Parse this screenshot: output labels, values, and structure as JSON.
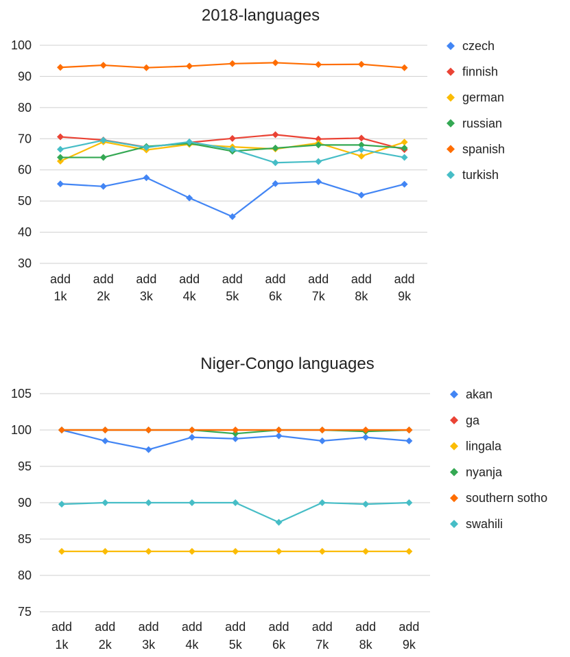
{
  "chart_data": [
    {
      "type": "line",
      "title": "2018-languages",
      "categories": [
        "add 1k",
        "add 2k",
        "add 3k",
        "add 4k",
        "add 5k",
        "add 6k",
        "add 7k",
        "add 8k",
        "add 9k"
      ],
      "ylim": [
        30,
        100
      ],
      "yticks": [
        30,
        40,
        50,
        60,
        70,
        80,
        90,
        100
      ],
      "grid": true,
      "legend": "right",
      "series": [
        {
          "name": "czech",
          "color": "#4285f4",
          "values": [
            55.5,
            54.7,
            57.5,
            51.0,
            45.0,
            55.6,
            56.2,
            51.9,
            55.4
          ]
        },
        {
          "name": "finnish",
          "color": "#ea4335",
          "values": [
            70.6,
            69.6,
            67.3,
            68.8,
            70.1,
            71.3,
            69.9,
            70.2,
            66.5
          ]
        },
        {
          "name": "german",
          "color": "#fbbc04",
          "values": [
            62.8,
            69.0,
            66.4,
            68.2,
            67.4,
            66.7,
            68.6,
            64.4,
            68.9
          ]
        },
        {
          "name": "russian",
          "color": "#34a853",
          "values": [
            64.0,
            64.0,
            67.5,
            68.5,
            66.0,
            67.0,
            68.0,
            68.0,
            67.0
          ]
        },
        {
          "name": "spanish",
          "color": "#ff6d01",
          "values": [
            92.9,
            93.6,
            92.8,
            93.3,
            94.1,
            94.4,
            93.8,
            93.9,
            92.8
          ]
        },
        {
          "name": "turkish",
          "color": "#46bdc6",
          "values": [
            66.6,
            69.5,
            67.2,
            69.0,
            66.6,
            62.3,
            62.7,
            66.5,
            64.0
          ]
        }
      ]
    },
    {
      "type": "line",
      "title": "Niger-Congo languages",
      "categories": [
        "add 1k",
        "add 2k",
        "add 3k",
        "add 4k",
        "add 5k",
        "add 6k",
        "add 7k",
        "add 8k",
        "add 9k"
      ],
      "ylim": [
        75,
        105
      ],
      "yticks": [
        75,
        80,
        85,
        90,
        95,
        100,
        105
      ],
      "grid": true,
      "legend": "right",
      "series": [
        {
          "name": "akan",
          "color": "#4285f4",
          "values": [
            100.0,
            98.5,
            97.3,
            99.0,
            98.8,
            99.2,
            98.5,
            99.0,
            98.5
          ]
        },
        {
          "name": "ga",
          "color": "#ea4335",
          "values": [
            100.0,
            100.0,
            100.0,
            100.0,
            100.0,
            100.0,
            100.0,
            100.0,
            100.0
          ]
        },
        {
          "name": "lingala",
          "color": "#fbbc04",
          "values": [
            83.3,
            83.3,
            83.3,
            83.3,
            83.3,
            83.3,
            83.3,
            83.3,
            83.3
          ]
        },
        {
          "name": "nyanja",
          "color": "#34a853",
          "values": [
            100.0,
            100.0,
            100.0,
            100.0,
            99.5,
            100.0,
            100.0,
            99.8,
            100.0
          ]
        },
        {
          "name": "southern sotho",
          "color": "#ff6d01",
          "values": [
            100.0,
            100.0,
            100.0,
            100.0,
            100.0,
            100.0,
            100.0,
            100.0,
            100.0
          ]
        },
        {
          "name": "swahili",
          "color": "#46bdc6",
          "values": [
            89.8,
            90.0,
            90.0,
            90.0,
            90.0,
            87.3,
            90.0,
            89.8,
            90.0
          ]
        }
      ]
    }
  ]
}
